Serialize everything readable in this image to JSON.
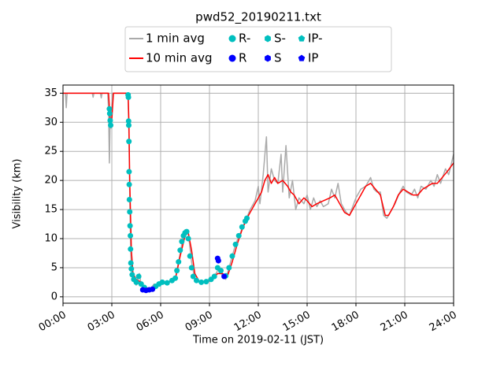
{
  "chart_data": {
    "type": "line",
    "title": "pwd52_20190211.txt",
    "xlabel": "Time on 2019-02-11 (JST)",
    "ylabel": "Visibility (km)",
    "xlim": [
      0,
      24
    ],
    "ylim": [
      -1.1,
      36.4
    ],
    "xticks": [
      {
        "value": 0,
        "label": "00:00"
      },
      {
        "value": 3,
        "label": "03:00"
      },
      {
        "value": 6,
        "label": "06:00"
      },
      {
        "value": 9,
        "label": "09:00"
      },
      {
        "value": 12,
        "label": "12:00"
      },
      {
        "value": 15,
        "label": "15:00"
      },
      {
        "value": 18,
        "label": "18:00"
      },
      {
        "value": 21,
        "label": "21:00"
      },
      {
        "value": 24,
        "label": "24:00"
      }
    ],
    "yticks": [
      0,
      5,
      10,
      15,
      20,
      25,
      30,
      35
    ],
    "grid": true,
    "legend": "upper center",
    "series": [
      {
        "name": "1 min avg",
        "style": "line",
        "color": "#aaaaaa",
        "x": [
          0,
          0.15,
          0.2,
          0.25,
          1.8,
          1.85,
          1.9,
          2.3,
          2.35,
          2.4,
          2.75,
          2.8,
          2.85,
          2.9,
          2.95,
          3.0,
          3.05,
          3.95,
          4.0,
          4.05,
          4.1,
          4.15,
          4.2,
          4.3,
          4.5,
          4.7,
          4.8,
          5.0,
          5.2,
          5.4,
          5.6,
          5.8,
          6.0,
          6.3,
          6.6,
          6.9,
          7.1,
          7.3,
          7.5,
          7.7,
          7.9,
          8.1,
          8.4,
          8.8,
          9.1,
          9.4,
          9.6,
          9.8,
          10.0,
          10.3,
          10.6,
          10.9,
          11.2,
          11.5,
          11.8,
          12.0,
          12.1,
          12.3,
          12.5,
          12.6,
          12.8,
          13.0,
          13.2,
          13.4,
          13.5,
          13.7,
          13.9,
          14.1,
          14.3,
          14.5,
          14.8,
          15.0,
          15.2,
          15.4,
          15.6,
          15.8,
          16.0,
          16.3,
          16.5,
          16.7,
          16.9,
          17.1,
          17.4,
          17.6,
          17.8,
          18.0,
          18.3,
          18.6,
          18.9,
          19.1,
          19.3,
          19.5,
          19.7,
          19.9,
          20.1,
          20.4,
          20.7,
          20.9,
          21.1,
          21.4,
          21.6,
          21.8,
          22.0,
          22.3,
          22.6,
          22.8,
          23.0,
          23.2,
          23.5,
          23.7,
          24.0
        ],
        "values": [
          35,
          35,
          32.5,
          35,
          35,
          34.3,
          35,
          35,
          34.2,
          35,
          35,
          32,
          23,
          31,
          29,
          33,
          35,
          35,
          34,
          28,
          18,
          9,
          5,
          3,
          2,
          4,
          2,
          1.5,
          1,
          1.5,
          2.2,
          2,
          2.5,
          2.2,
          2.8,
          3,
          6,
          9,
          11.5,
          11,
          6,
          3,
          2.5,
          2.8,
          3.2,
          4,
          5,
          3.5,
          3,
          6,
          9,
          11,
          13,
          15,
          16.5,
          19,
          16,
          21,
          27.5,
          18,
          22,
          20,
          19.5,
          24.5,
          18,
          26,
          17,
          20,
          15,
          17,
          16,
          17.5,
          15,
          17,
          15.5,
          16.5,
          15.5,
          16,
          18.5,
          17,
          19.5,
          16,
          14.5,
          14,
          15.5,
          17,
          18.5,
          19,
          20.5,
          18.5,
          18,
          18,
          14,
          13.5,
          14.5,
          16,
          18,
          19,
          18,
          17.5,
          18.5,
          17,
          19,
          18.5,
          20,
          19,
          21,
          19.5,
          22,
          21,
          24.5
        ]
      },
      {
        "name": "10 min avg",
        "style": "line",
        "color": "#ff0000",
        "x": [
          0,
          2.8,
          2.9,
          3.0,
          3.1,
          4.0,
          4.05,
          4.1,
          4.2,
          4.3,
          4.5,
          4.8,
          5.0,
          5.5,
          6.0,
          6.5,
          6.9,
          7.2,
          7.5,
          7.7,
          7.9,
          8.1,
          8.4,
          8.8,
          9.2,
          9.5,
          9.8,
          10.1,
          10.4,
          10.7,
          11.0,
          11.3,
          11.6,
          11.9,
          12.2,
          12.4,
          12.6,
          12.8,
          13.0,
          13.2,
          13.5,
          13.8,
          14.0,
          14.2,
          14.5,
          14.8,
          15.0,
          15.3,
          15.6,
          16.0,
          16.4,
          16.7,
          17.0,
          17.3,
          17.6,
          18.0,
          18.3,
          18.6,
          18.9,
          19.2,
          19.5,
          19.8,
          20.0,
          20.3,
          20.6,
          20.9,
          21.2,
          21.5,
          21.8,
          22.1,
          22.4,
          22.7,
          23.0,
          23.3,
          23.6,
          24.0
        ],
        "values": [
          35,
          35,
          30,
          30.5,
          35,
          35,
          30,
          20,
          8,
          4,
          3,
          2.5,
          1.5,
          1.5,
          2.5,
          2.5,
          3,
          7,
          10.5,
          11,
          8,
          4,
          2.5,
          2.5,
          3,
          4,
          4,
          3.5,
          6,
          9,
          11.5,
          13.5,
          15,
          16.5,
          18,
          20,
          21,
          19.5,
          20.5,
          19.5,
          20,
          19,
          18,
          17.5,
          16,
          17,
          16.5,
          15.5,
          16,
          16.5,
          17,
          17.5,
          16,
          14.5,
          14,
          16,
          17.5,
          19,
          19.5,
          18.5,
          17.5,
          14,
          14,
          15.5,
          17.5,
          18.5,
          18,
          17.5,
          17.5,
          18.5,
          19,
          19.5,
          19.5,
          20.5,
          21.5,
          23
        ]
      },
      {
        "name": "R-",
        "style": "marker",
        "marker": "circle",
        "color": "#00bfbf",
        "x": [
          2.85,
          2.87,
          2.9,
          2.93,
          4.0,
          4.02,
          4.03,
          4.04,
          4.05,
          4.06,
          4.07,
          4.08,
          4.1,
          4.12,
          4.14,
          4.15,
          4.17,
          4.2,
          4.25,
          4.35,
          4.5,
          4.65,
          4.8,
          5.0,
          5.7,
          5.9,
          6.1,
          6.4,
          6.7,
          6.9,
          7.0,
          7.1,
          7.2,
          7.3,
          7.4,
          7.5,
          7.6,
          7.7,
          7.8,
          7.9,
          8.0,
          8.2,
          8.5,
          8.8,
          9.1,
          9.3,
          9.5,
          9.7,
          10.0,
          10.2,
          10.4,
          10.6,
          10.8,
          11.0,
          11.2,
          11.3
        ],
        "values": [
          32.3,
          31.5,
          30.3,
          29.5,
          34.7,
          34.3,
          30.2,
          29.5,
          26.7,
          21.5,
          19.3,
          16.7,
          14.6,
          12.2,
          10.5,
          8.2,
          5.8,
          4.8,
          3.8,
          3,
          2.5,
          3.5,
          2.2,
          1.6,
          1.8,
          2.2,
          2.5,
          2.4,
          2.8,
          3.2,
          4.5,
          6,
          8,
          9.5,
          10.5,
          11,
          11.2,
          10,
          7,
          5,
          3.5,
          2.8,
          2.5,
          2.6,
          3,
          3.5,
          5,
          4.5,
          3.6,
          5,
          7,
          9,
          10.5,
          12,
          13,
          13.5
        ]
      },
      {
        "name": "R",
        "style": "marker",
        "marker": "circle",
        "color": "#0000ff",
        "x": [
          4.9,
          5.1,
          5.3,
          5.5,
          9.5,
          9.55,
          9.9
        ],
        "values": [
          1.2,
          1.1,
          1.2,
          1.3,
          6.6,
          6.2,
          3.5
        ]
      },
      {
        "name": "S-",
        "style": "marker",
        "marker": "hexagon",
        "color": "#00bfbf",
        "x": [],
        "values": []
      },
      {
        "name": "S",
        "style": "marker",
        "marker": "hexagon",
        "color": "#0000ff",
        "x": [],
        "values": []
      },
      {
        "name": "IP-",
        "style": "marker",
        "marker": "pentagon",
        "color": "#00bfbf",
        "x": [],
        "values": []
      },
      {
        "name": "IP",
        "style": "marker",
        "marker": "pentagon",
        "color": "#0000ff",
        "x": [],
        "values": []
      }
    ]
  }
}
